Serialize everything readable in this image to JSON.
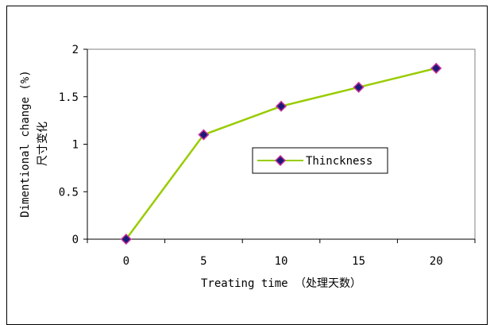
{
  "chart_data": {
    "type": "line",
    "x": [
      0,
      5,
      10,
      15,
      20
    ],
    "series": [
      {
        "name": "Thinckness",
        "values": [
          0,
          1.1,
          1.4,
          1.6,
          1.8
        ],
        "color": "#99cc00",
        "marker": "diamond",
        "marker_fill": "#1a1a7a",
        "marker_edge": "#cc3399"
      }
    ],
    "xlabel": "Treating time （处理天数）",
    "ylabel_line1": "Dimentional change (%)",
    "ylabel_line2": "尺寸变化",
    "x_ticks": [
      "0",
      "5",
      "10",
      "15",
      "20"
    ],
    "y_ticks": [
      "0",
      "0.5",
      "1",
      "1.5",
      "2"
    ],
    "ylim": [
      0,
      2
    ],
    "grid": false,
    "legend_position": "center-right"
  }
}
